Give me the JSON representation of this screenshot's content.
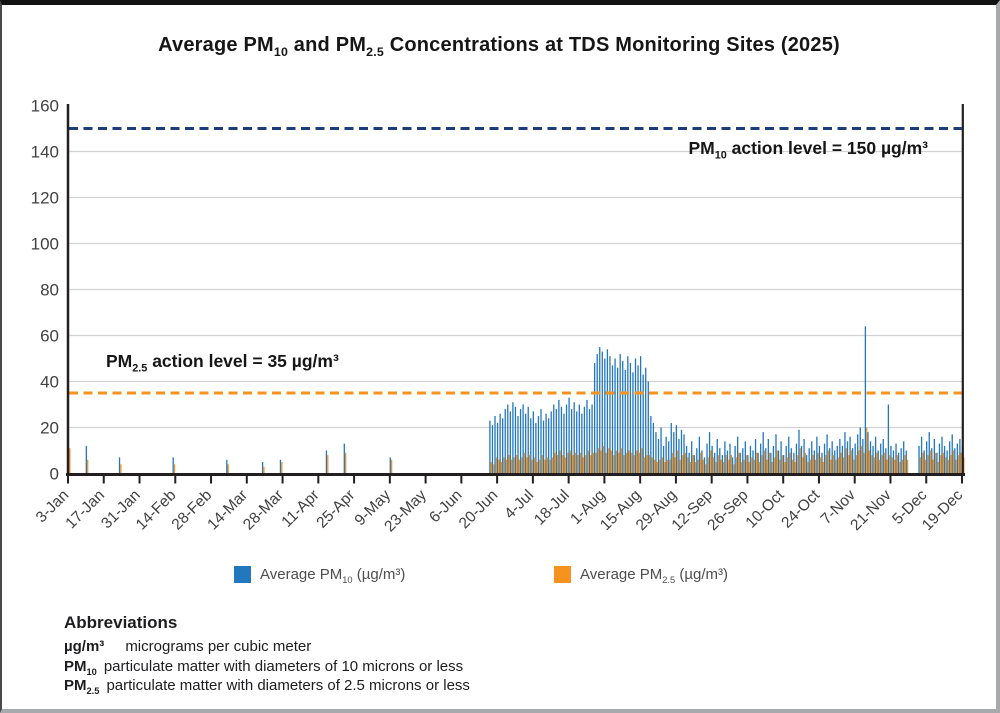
{
  "title": {
    "p1": "Average PM",
    "s1": "10",
    "p2": " and PM",
    "s2": "2.5",
    "p3": " Concentrations at TDS Monitoring Sites (2025)"
  },
  "annotations": {
    "pm10_action": {
      "p": "PM",
      "sub": "10",
      "rest": " action level = 150 µg/m³"
    },
    "pm25_action": {
      "p": "PM",
      "sub": "2.5",
      "rest": " action level = 35 µg/m³"
    }
  },
  "legend": [
    {
      "p": "Average PM",
      "sub": "10",
      "rest": " (µg/m³)",
      "swatch": "#2277bd"
    },
    {
      "p": "Average PM",
      "sub": "2.5",
      "rest": " (µg/m³)",
      "swatch": "#f6921e"
    }
  ],
  "abbreviations": {
    "header": "Abbreviations",
    "rows": [
      {
        "term_p": "µg/m³",
        "term_sub": "",
        "def": "micrograms per cubic meter"
      },
      {
        "term_p": "PM",
        "term_sub": "10",
        "def": "particulate matter with diameters of 10 microns or less"
      },
      {
        "term_p": "PM",
        "term_sub": "2.5",
        "def": "particulate matter with diameters of 2.5 microns or less"
      }
    ]
  },
  "chart_data": {
    "type": "bar",
    "title": "Average PM10 and PM2.5 Concentrations at TDS Monitoring Sites (2025)",
    "ylabel": "",
    "xlabel": "",
    "ylim": [
      0,
      160
    ],
    "y_ticks": [
      0,
      20,
      40,
      60,
      80,
      100,
      120,
      140,
      160
    ],
    "grid": "horizontal",
    "legend_position": "bottom",
    "x_tick_interval_days": 14,
    "x_tick_labels": [
      "3-Jan",
      "17-Jan",
      "31-Jan",
      "14-Feb",
      "28-Feb",
      "14-Mar",
      "28-Mar",
      "11-Apr",
      "25-Apr",
      "9-May",
      "23-May",
      "6-Jun",
      "20-Jun",
      "4-Jul",
      "18-Jul",
      "1-Aug",
      "15-Aug",
      "29-Aug",
      "12-Sep",
      "26-Sep",
      "10-Oct",
      "24-Oct",
      "7-Nov",
      "21-Nov",
      "5-Dec",
      "19-Dec"
    ],
    "series": [
      {
        "name": "Average PM10 (µg/m³)",
        "color": "#2277bd"
      },
      {
        "name": "Average PM2.5 (µg/m³)",
        "color": "#f6921e"
      }
    ],
    "thresholds": [
      {
        "label": "PM10 action level = 150 µg/m³",
        "value": 150,
        "color": "#1c3d7a",
        "style": "dashed"
      },
      {
        "label": "PM2.5 action level = 35 µg/m³",
        "value": 35,
        "color": "#f6921e",
        "style": "dashed"
      }
    ],
    "x_unit": "day offset from 3-Jan-2025",
    "sparse_points": {
      "day_offsets": [
        0,
        7,
        20,
        41,
        62,
        76,
        83,
        101,
        108,
        126
      ],
      "pm10": [
        8,
        12,
        7,
        7,
        6,
        5,
        6,
        10,
        13,
        7
      ],
      "pm25": [
        11,
        6,
        4,
        4,
        4,
        3,
        5,
        8,
        9,
        6
      ]
    },
    "daily_segments": [
      {
        "start_day": 165,
        "pm10": [
          23,
          21,
          25,
          22,
          26,
          24,
          28,
          30,
          27,
          31,
          29,
          25,
          28,
          30,
          26,
          29,
          24,
          27,
          22,
          25,
          28,
          23,
          26,
          24,
          27,
          30,
          28,
          32,
          29,
          26,
          30,
          33,
          28,
          31,
          27,
          30,
          26,
          29,
          32,
          28,
          30,
          48,
          52,
          55,
          53,
          50,
          54,
          51,
          47,
          50,
          46,
          52,
          49,
          45,
          51,
          48,
          44,
          50,
          47,
          51,
          43,
          46,
          40,
          25,
          22,
          18,
          15,
          20,
          12,
          16,
          14,
          22,
          18,
          21,
          15,
          19,
          17,
          12,
          9,
          14,
          8,
          11,
          16,
          10,
          7,
          13,
          18,
          12,
          9,
          15,
          11,
          8,
          14,
          10,
          13,
          7,
          12,
          16,
          9,
          11,
          14,
          8,
          12,
          10,
          15,
          9,
          13,
          18,
          11,
          15,
          9,
          12,
          17,
          10,
          14,
          8,
          12,
          16,
          11,
          9,
          13,
          19,
          12,
          15,
          8,
          11,
          14,
          10,
          16,
          12,
          9,
          13,
          17,
          11,
          14,
          10,
          12,
          15,
          12,
          18,
          14,
          16,
          11,
          13,
          17,
          20,
          15,
          64,
          18,
          14,
          12,
          16,
          10,
          13,
          15,
          11,
          30,
          12,
          10,
          13,
          9,
          11,
          14,
          10
        ],
        "pm25": [
          5,
          4,
          7,
          6,
          5,
          7,
          6,
          8,
          6,
          7,
          8,
          6,
          7,
          9,
          7,
          8,
          6,
          7,
          5,
          6,
          8,
          6,
          7,
          6,
          7,
          9,
          8,
          10,
          8,
          7,
          9,
          10,
          8,
          9,
          8,
          9,
          7,
          8,
          10,
          8,
          9,
          9,
          11,
          10,
          12,
          9,
          11,
          10,
          8,
          10,
          9,
          11,
          8,
          9,
          10,
          9,
          8,
          10,
          9,
          11,
          7,
          8,
          8,
          7,
          6,
          5,
          6,
          7,
          5,
          6,
          6,
          9,
          7,
          10,
          6,
          8,
          9,
          7,
          5,
          8,
          5,
          6,
          9,
          6,
          4,
          7,
          10,
          7,
          5,
          8,
          6,
          5,
          8,
          6,
          8,
          4,
          7,
          9,
          5,
          6,
          8,
          5,
          7,
          6,
          9,
          5,
          8,
          10,
          6,
          9,
          5,
          7,
          10,
          6,
          8,
          5,
          7,
          9,
          6,
          5,
          8,
          11,
          7,
          9,
          5,
          6,
          8,
          6,
          9,
          7,
          5,
          8,
          10,
          6,
          8,
          6,
          7,
          9,
          7,
          11,
          8,
          10,
          6,
          8,
          10,
          12,
          9,
          20,
          10,
          8,
          7,
          9,
          6,
          8,
          9,
          6,
          8,
          7,
          6,
          8,
          5,
          6,
          8,
          6
        ]
      },
      {
        "start_day": 333,
        "pm10": [
          12,
          16,
          10,
          14,
          18,
          11,
          15,
          9,
          13,
          16,
          12,
          10,
          14,
          17,
          11,
          13,
          15,
          12
        ],
        "pm25": [
          7,
          9,
          6,
          8,
          10,
          6,
          9,
          5,
          8,
          9,
          7,
          6,
          8,
          10,
          6,
          8,
          9,
          7
        ]
      }
    ]
  }
}
